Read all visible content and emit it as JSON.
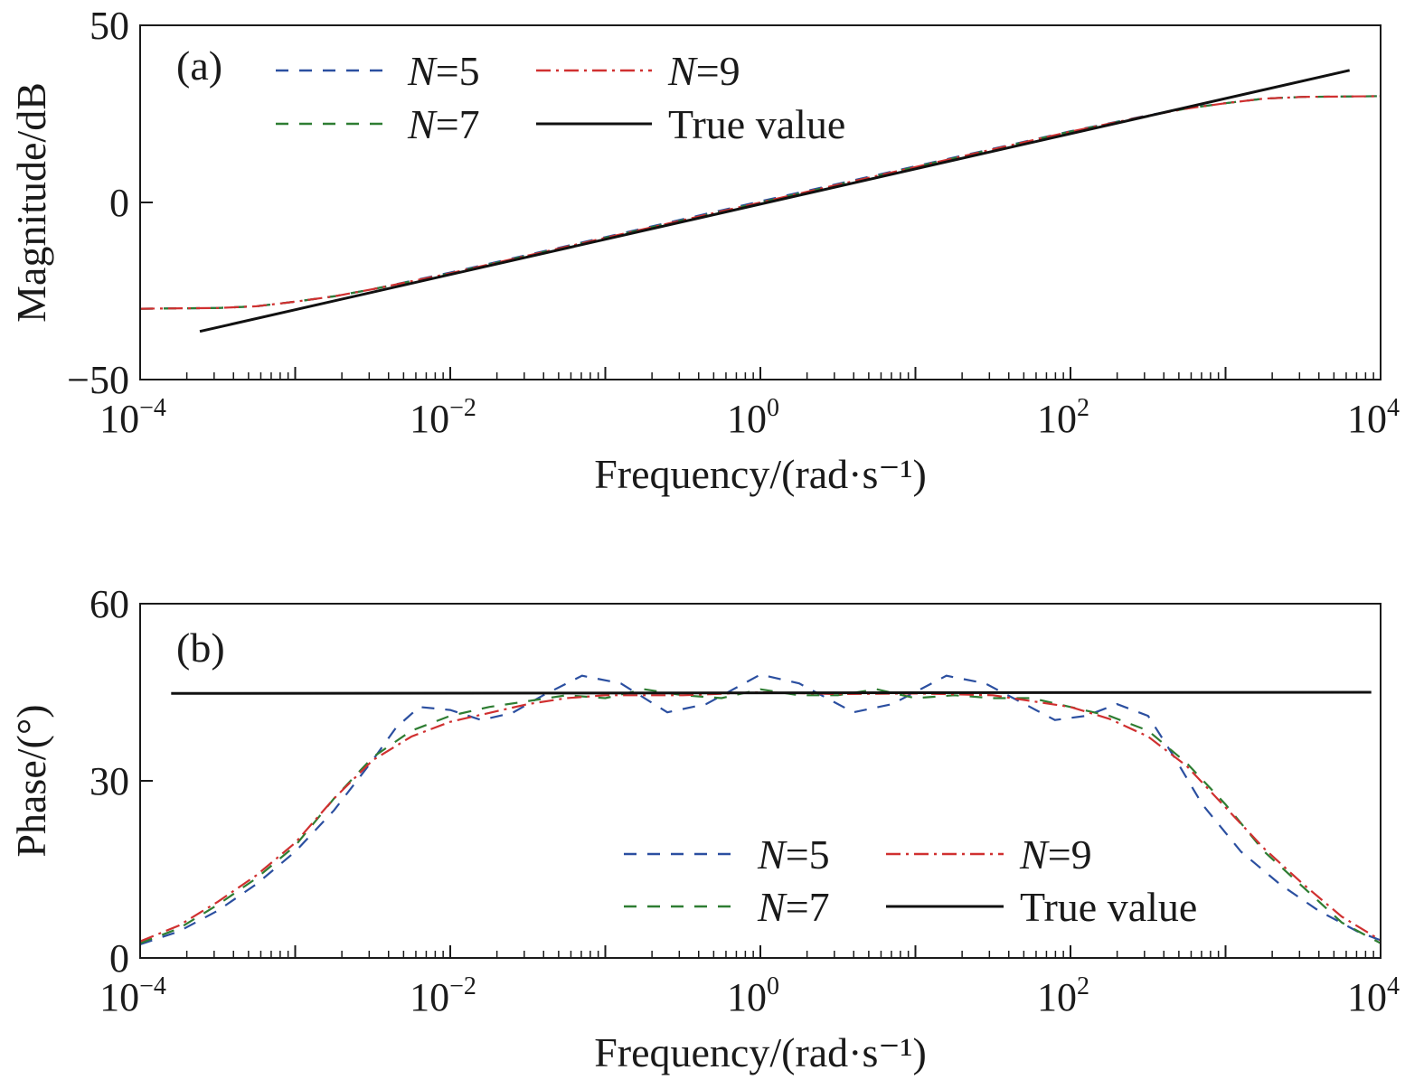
{
  "chart_data": [
    {
      "type": "line",
      "panel_label": "(a)",
      "xscale": "log",
      "x_units_note": "x values given as log10(frequency)",
      "xlim_log10": [
        -4,
        4
      ],
      "ylim": [
        -50,
        50
      ],
      "xlabel": "Frequency/(rad·s⁻¹)",
      "ylabel": "Magnitude/dB",
      "x_ticks": [
        {
          "base": "10",
          "exp": "−4",
          "v": -4
        },
        {
          "base": "10",
          "exp": "−2",
          "v": -2
        },
        {
          "base": "10",
          "exp": "0",
          "v": 0
        },
        {
          "base": "10",
          "exp": "2",
          "v": 2
        },
        {
          "base": "10",
          "exp": "4",
          "v": 4
        }
      ],
      "y_ticks": [
        {
          "label": "50",
          "v": 50
        },
        {
          "label": "0",
          "v": 0
        },
        {
          "label": "−50",
          "v": -50
        }
      ],
      "legend_placement": "top-left",
      "series": [
        {
          "name": "N=5",
          "label_italic": "N",
          "label_rest": "=5",
          "color": "#2b4fa0",
          "dash": "14 12",
          "points": [
            [
              -4,
              -30
            ],
            [
              -3.5,
              -29.8
            ],
            [
              -3.25,
              -29.3
            ],
            [
              -3,
              -28
            ],
            [
              -2.75,
              -26.5
            ],
            [
              -2.5,
              -24.5
            ],
            [
              -2,
              -19.8
            ],
            [
              -1,
              -9.8
            ],
            [
              0,
              0.3
            ],
            [
              1,
              10.2
            ],
            [
              2,
              20.1
            ],
            [
              2.5,
              24.6
            ],
            [
              2.75,
              26.6
            ],
            [
              3,
              28
            ],
            [
              3.25,
              29.3
            ],
            [
              3.5,
              29.8
            ],
            [
              4,
              30
            ]
          ]
        },
        {
          "name": "N=7",
          "label_italic": "N",
          "label_rest": "=7",
          "color": "#2e7d32",
          "dash": "14 12",
          "points": [
            [
              -4,
              -30
            ],
            [
              -3.5,
              -29.8
            ],
            [
              -3.25,
              -29.3
            ],
            [
              -3,
              -28
            ],
            [
              -2.75,
              -26.5
            ],
            [
              -2.5,
              -24.5
            ],
            [
              -2,
              -20
            ],
            [
              -1,
              -10
            ],
            [
              0,
              0
            ],
            [
              1,
              10
            ],
            [
              2,
              20
            ],
            [
              2.5,
              24.5
            ],
            [
              2.75,
              26.5
            ],
            [
              3,
              28
            ],
            [
              3.25,
              29.3
            ],
            [
              3.5,
              29.8
            ],
            [
              4,
              30
            ]
          ]
        },
        {
          "name": "N=9",
          "label_italic": "N",
          "label_rest": "=9",
          "color": "#d03030",
          "dash": "16 6 3 6",
          "points": [
            [
              -4,
              -30
            ],
            [
              -3.5,
              -29.8
            ],
            [
              -3.25,
              -29.3
            ],
            [
              -3,
              -28
            ],
            [
              -2.75,
              -26.5
            ],
            [
              -2.5,
              -24.5
            ],
            [
              -2,
              -20
            ],
            [
              -1,
              -10
            ],
            [
              0,
              0
            ],
            [
              1,
              10
            ],
            [
              2,
              20
            ],
            [
              2.5,
              24.5
            ],
            [
              2.75,
              26.5
            ],
            [
              3,
              28
            ],
            [
              3.25,
              29.3
            ],
            [
              3.5,
              29.8
            ],
            [
              4,
              30
            ]
          ]
        },
        {
          "name": "True value",
          "label_italic": "",
          "label_rest": "True value",
          "color": "#111111",
          "dash": "",
          "points": [
            [
              -3.615,
              -36.4
            ],
            [
              3.8,
              37.3
            ]
          ]
        }
      ]
    },
    {
      "type": "line",
      "panel_label": "(b)",
      "xscale": "log",
      "x_units_note": "x values given as log10(frequency)",
      "xlim_log10": [
        -4,
        4
      ],
      "ylim": [
        0,
        60
      ],
      "xlabel": "Frequency/(rad·s⁻¹)",
      "ylabel": "Phase/(°)",
      "x_ticks": [
        {
          "base": "10",
          "exp": "−4",
          "v": -4
        },
        {
          "base": "10",
          "exp": "−2",
          "v": -2
        },
        {
          "base": "10",
          "exp": "0",
          "v": 0
        },
        {
          "base": "10",
          "exp": "2",
          "v": 2
        },
        {
          "base": "10",
          "exp": "4",
          "v": 4
        }
      ],
      "y_ticks": [
        {
          "label": "60",
          "v": 60
        },
        {
          "label": "30",
          "v": 30
        },
        {
          "label": "0",
          "v": 0
        }
      ],
      "legend_placement": "lower-center",
      "series": [
        {
          "name": "N=5",
          "label_italic": "N",
          "label_rest": "=5",
          "color": "#2b4fa0",
          "dash": "14 12",
          "points": [
            [
              -4,
              2.3
            ],
            [
              -3.75,
              4.5
            ],
            [
              -3.5,
              8
            ],
            [
              -3.25,
              12.5
            ],
            [
              -3,
              18
            ],
            [
              -2.75,
              25
            ],
            [
              -2.5,
              33.5
            ],
            [
              -2.35,
              39
            ],
            [
              -2.2,
              42.5
            ],
            [
              -2,
              42
            ],
            [
              -1.8,
              40.3
            ],
            [
              -1.6,
              41.5
            ],
            [
              -1.4,
              44.5
            ],
            [
              -1.15,
              47.8
            ],
            [
              -0.9,
              46.5
            ],
            [
              -0.6,
              41.6
            ],
            [
              -0.35,
              43
            ],
            [
              0,
              48
            ],
            [
              0.25,
              46.5
            ],
            [
              0.6,
              41.6
            ],
            [
              0.85,
              43
            ],
            [
              1.2,
              47.8
            ],
            [
              1.45,
              46.5
            ],
            [
              1.9,
              40.3
            ],
            [
              2.1,
              41
            ],
            [
              2.3,
              43
            ],
            [
              2.5,
              41
            ],
            [
              2.67,
              34
            ],
            [
              2.85,
              26
            ],
            [
              3.1,
              18
            ],
            [
              3.35,
              12.5
            ],
            [
              3.6,
              8
            ],
            [
              3.85,
              4.5
            ],
            [
              4,
              3
            ]
          ]
        },
        {
          "name": "N=7",
          "label_italic": "N",
          "label_rest": "=7",
          "color": "#2e7d32",
          "dash": "14 12",
          "points": [
            [
              -4,
              2.5
            ],
            [
              -3.75,
              5
            ],
            [
              -3.5,
              9
            ],
            [
              -3.25,
              13.5
            ],
            [
              -3,
              19
            ],
            [
              -2.75,
              27
            ],
            [
              -2.5,
              34
            ],
            [
              -2.25,
              38.5
            ],
            [
              -2,
              41
            ],
            [
              -1.75,
              42.5
            ],
            [
              -1.5,
              43.5
            ],
            [
              -1.25,
              44.5
            ],
            [
              -1,
              44
            ],
            [
              -0.75,
              45.5
            ],
            [
              -0.5,
              44.5
            ],
            [
              -0.25,
              44
            ],
            [
              0,
              45.5
            ],
            [
              0.25,
              44.5
            ],
            [
              0.5,
              44.5
            ],
            [
              0.75,
              45.5
            ],
            [
              1,
              44
            ],
            [
              1.25,
              44.5
            ],
            [
              1.5,
              44
            ],
            [
              1.75,
              44
            ],
            [
              2,
              42.5
            ],
            [
              2.25,
              41
            ],
            [
              2.5,
              38.5
            ],
            [
              2.75,
              33
            ],
            [
              3,
              26
            ],
            [
              3.25,
              18
            ],
            [
              3.5,
              12
            ],
            [
              3.75,
              6
            ],
            [
              4,
              2.5
            ]
          ]
        },
        {
          "name": "N=9",
          "label_italic": "N",
          "label_rest": "=9",
          "color": "#d03030",
          "dash": "16 6 3 6",
          "points": [
            [
              -4,
              2.8
            ],
            [
              -3.75,
              5.5
            ],
            [
              -3.5,
              9.5
            ],
            [
              -3.25,
              14
            ],
            [
              -3,
              19.5
            ],
            [
              -2.75,
              27
            ],
            [
              -2.5,
              33.5
            ],
            [
              -2.25,
              37.5
            ],
            [
              -2,
              40
            ],
            [
              -1.75,
              41.5
            ],
            [
              -1.5,
              43
            ],
            [
              -1.25,
              44
            ],
            [
              -1,
              44.5
            ],
            [
              -0.5,
              44.5
            ],
            [
              0,
              45
            ],
            [
              0.5,
              44.7
            ],
            [
              1,
              44.8
            ],
            [
              1.5,
              44.5
            ],
            [
              2,
              42.5
            ],
            [
              2.25,
              40.5
            ],
            [
              2.5,
              37.5
            ],
            [
              2.75,
              32.5
            ],
            [
              3,
              25.5
            ],
            [
              3.25,
              18.5
            ],
            [
              3.5,
              12.5
            ],
            [
              3.75,
              7
            ],
            [
              4,
              3
            ]
          ]
        },
        {
          "name": "True value",
          "label_italic": "",
          "label_rest": "True value",
          "color": "#111111",
          "dash": "",
          "points": [
            [
              -3.8,
              44.8
            ],
            [
              3.94,
              45
            ]
          ]
        }
      ]
    }
  ]
}
